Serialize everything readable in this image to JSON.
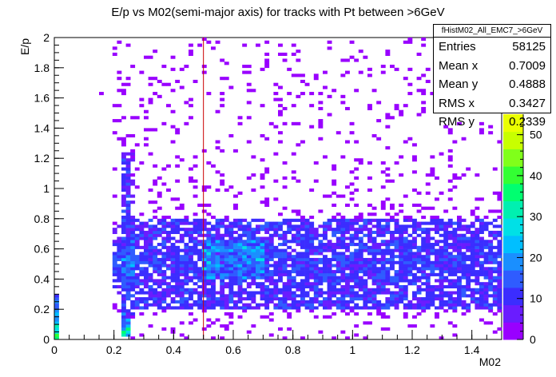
{
  "chart_data": {
    "type": "heatmap",
    "title": "E/p vs M02(semi-major axis) for tracks with Pt between >6GeV",
    "xlabel": "M02",
    "ylabel": "E/p",
    "xlim": [
      0,
      1.5
    ],
    "ylim": [
      0,
      2
    ],
    "x_ticks": [
      "0",
      "0.2",
      "0.4",
      "0.6",
      "0.8",
      "1",
      "1.2",
      "1.4"
    ],
    "y_ticks": [
      "0",
      "0.2",
      "0.4",
      "0.6",
      "0.8",
      "1",
      "1.2",
      "1.4",
      "1.6",
      "1.8",
      "2"
    ],
    "z_range": [
      0,
      55
    ],
    "z_ticks": [
      "0",
      "10",
      "20",
      "30",
      "40",
      "50"
    ],
    "marker_line_x": 0.5,
    "density_regions": [
      {
        "x_range": [
          0.0,
          0.02
        ],
        "y_range": [
          0.0,
          0.3
        ],
        "level": "high"
      },
      {
        "x_range": [
          0.22,
          0.26
        ],
        "y_range": [
          0.02,
          0.2
        ],
        "level": "high"
      },
      {
        "x_range": [
          0.22,
          0.26
        ],
        "y_range": [
          0.2,
          1.2
        ],
        "level": "medium"
      },
      {
        "x_range": [
          0.26,
          1.5
        ],
        "y_range": [
          0.2,
          0.8
        ],
        "level": "medium"
      },
      {
        "x_range": [
          0.5,
          0.7
        ],
        "y_range": [
          0.4,
          0.65
        ],
        "level": "peak"
      }
    ],
    "colors": {
      "palette": [
        "#9900ff",
        "#6a1cff",
        "#3b2dff",
        "#2f5cff",
        "#1a8fff",
        "#00bfff",
        "#00e0e6",
        "#00f0b0",
        "#00ff70",
        "#33ff33",
        "#80ff1a",
        "#c8ff00",
        "#eaff00"
      ],
      "marker_line": "#cc0000"
    }
  },
  "stats_box": {
    "name": "fHistM02_All_EMC7_>6GeV",
    "rows": [
      {
        "label": "Entries",
        "value": "58125"
      },
      {
        "label": "Mean x",
        "value": "0.7009"
      },
      {
        "label": "Mean y",
        "value": "0.4888"
      },
      {
        "label": "RMS x",
        "value": "0.3427"
      },
      {
        "label": "RMS y",
        "value": "0.2339"
      }
    ]
  }
}
